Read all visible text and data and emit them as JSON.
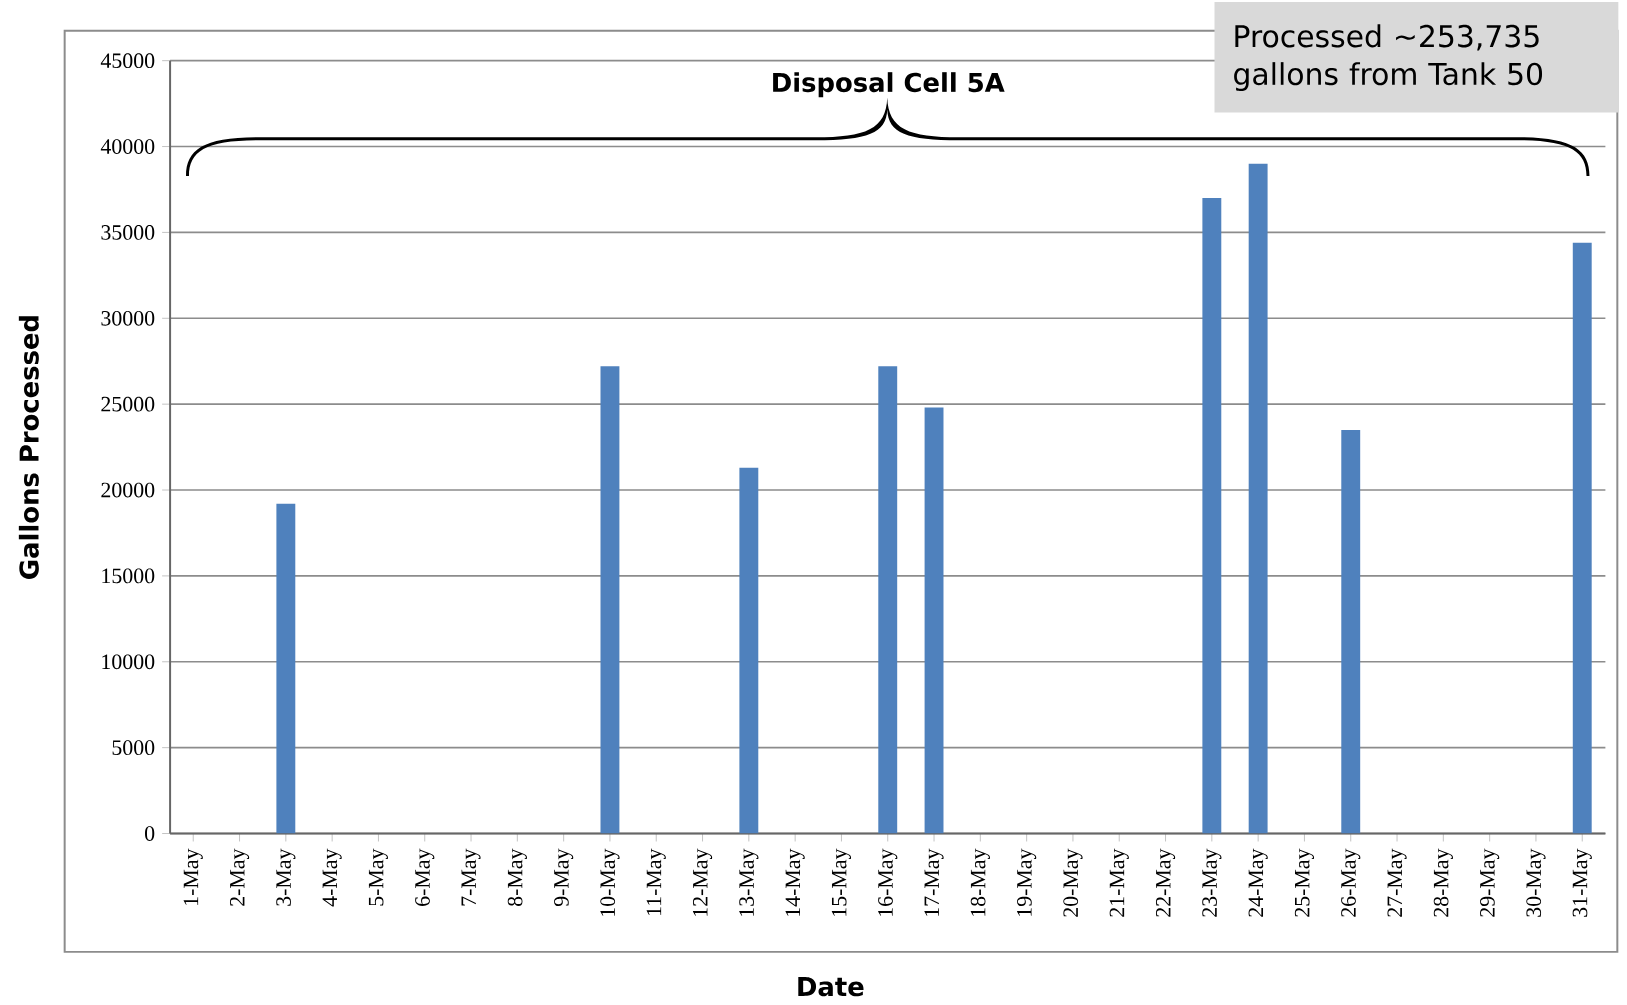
{
  "chart_data": {
    "type": "bar",
    "categories": [
      "1-May",
      "2-May",
      "3-May",
      "4-May",
      "5-May",
      "6-May",
      "7-May",
      "8-May",
      "9-May",
      "10-May",
      "11-May",
      "12-May",
      "13-May",
      "14-May",
      "15-May",
      "16-May",
      "17-May",
      "18-May",
      "19-May",
      "20-May",
      "21-May",
      "22-May",
      "23-May",
      "24-May",
      "25-May",
      "26-May",
      "27-May",
      "28-May",
      "29-May",
      "30-May",
      "31-May"
    ],
    "values": [
      0,
      0,
      19200,
      0,
      0,
      0,
      0,
      0,
      0,
      27200,
      0,
      0,
      21300,
      0,
      0,
      27200,
      24800,
      0,
      0,
      0,
      0,
      0,
      37000,
      39000,
      0,
      23500,
      0,
      0,
      0,
      0,
      34400
    ],
    "color": "#4f81bd",
    "xlabel": "Date",
    "ylabel": "Gallons Processed",
    "ylim": [
      0,
      45000
    ],
    "yticks": [
      0,
      5000,
      10000,
      15000,
      20000,
      25000,
      30000,
      35000,
      40000,
      45000
    ],
    "grid": "y",
    "annotations": [
      "Disposal Cell 5A",
      "Processed ~253,735 gallons from Tank 50"
    ]
  }
}
